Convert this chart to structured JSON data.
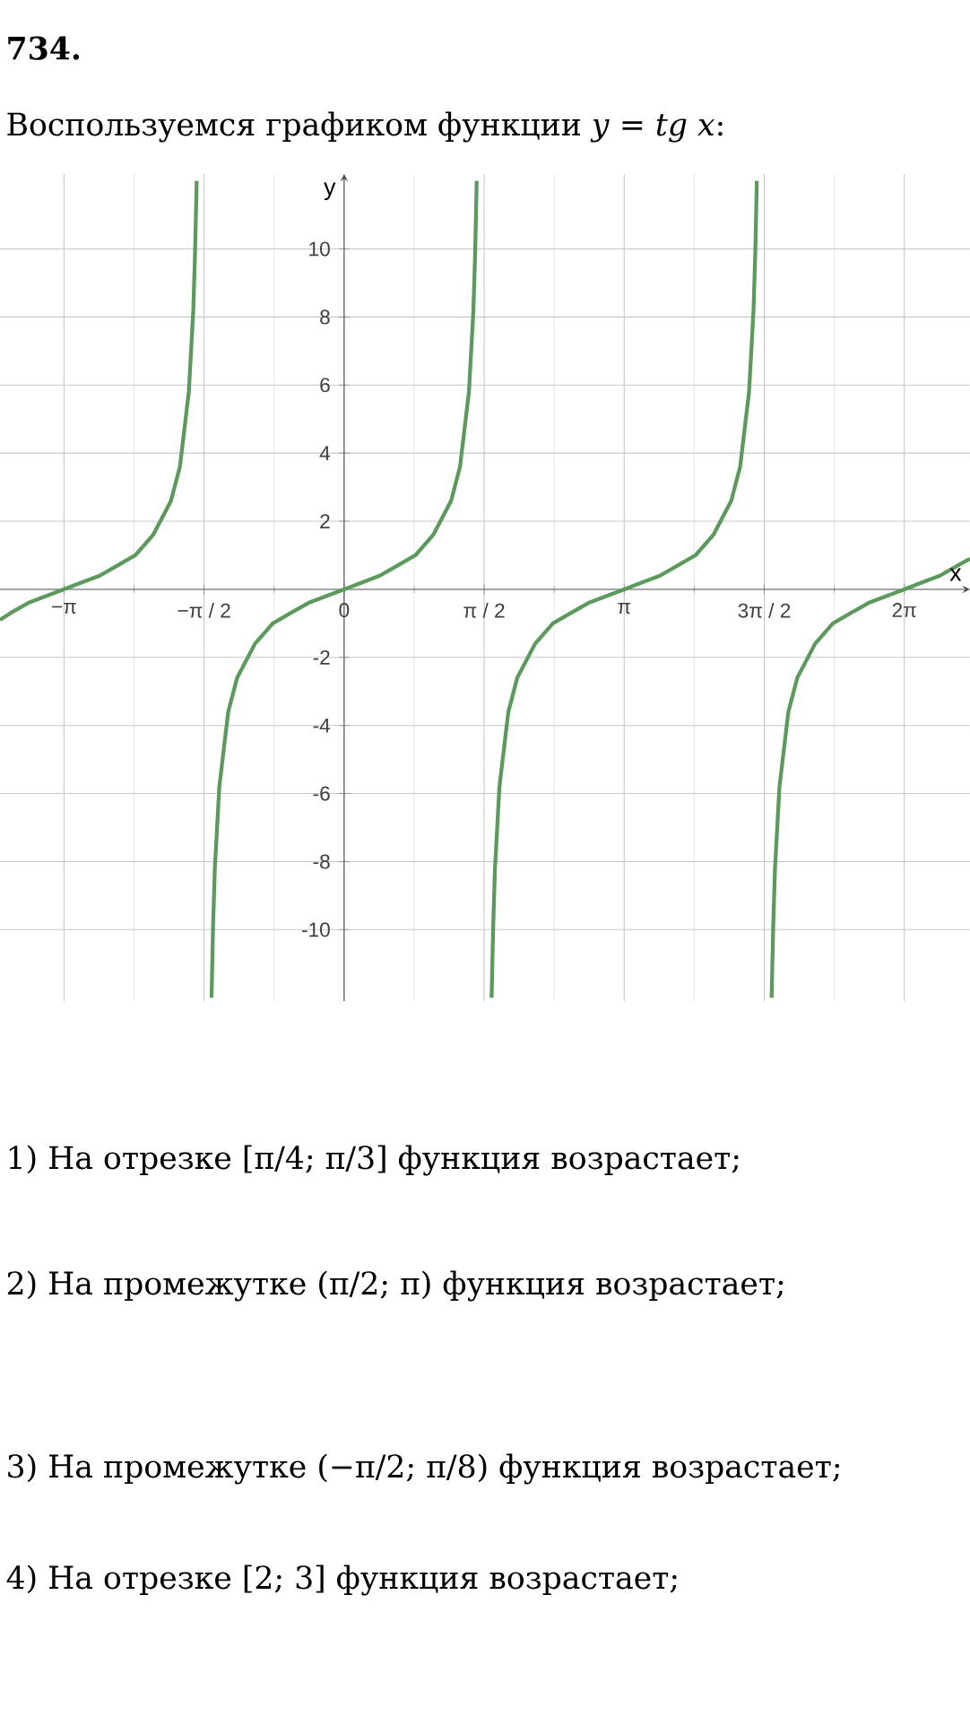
{
  "chart_data": {
    "type": "line",
    "title": "Воспользуемся графиком функции *y* = *tg x*:",
    "annotations": [
      "734.",
      "1) На отрезке [π/4; π/3] функция возрастает;",
      "2) На промежутке (π/2; π) функция возрастает;",
      "3) На промежутке (−π/2; π/8) функция возрастает;",
      "4) На отрезке [2; 3] функция возрастает;"
    ],
    "xlabel": "x",
    "ylabel": "y",
    "series": [
      {
        "color": "#5a9a5a",
        "x": [
          -3.86,
          -3.742,
          -3.542,
          -3.342,
          -3.142,
          -2.942,
          -2.742,
          -2.542,
          -2.342,
          -2.142,
          -1.942,
          -1.842,
          -1.742,
          -1.692,
          -1.672,
          -1.654
        ],
        "values": [
          -0.9,
          -0.7,
          -0.4,
          -0.2,
          0,
          0.2,
          0.4,
          0.7,
          1.0,
          1.6,
          2.6,
          3.6,
          5.8,
          8.2,
          9.9,
          12
        ]
      },
      {
        "color": "#5a9a5a",
        "x": [
          -1.487,
          -1.47,
          -1.45,
          -1.4,
          -1.3,
          -1.2,
          -1.0,
          -0.8,
          -0.6,
          -0.4,
          -0.2,
          0,
          0.2,
          0.4,
          0.6,
          0.8,
          1.0,
          1.2,
          1.3,
          1.4,
          1.45,
          1.47,
          1.487
        ],
        "values": [
          -12,
          -9.9,
          -8.2,
          -5.8,
          -3.6,
          -2.6,
          -1.6,
          -1.0,
          -0.7,
          -0.4,
          -0.2,
          0,
          0.2,
          0.4,
          0.7,
          1.0,
          1.6,
          2.6,
          3.6,
          5.8,
          8.2,
          9.9,
          12
        ]
      },
      {
        "color": "#5a9a5a",
        "x": [
          1.654,
          1.672,
          1.692,
          1.742,
          1.842,
          1.942,
          2.142,
          2.342,
          2.542,
          2.742,
          2.942,
          3.142,
          3.342,
          3.542,
          3.742,
          3.942,
          4.142,
          4.342,
          4.442,
          4.542,
          4.592,
          4.612,
          4.629
        ],
        "values": [
          -12,
          -9.9,
          -8.2,
          -5.8,
          -3.6,
          -2.6,
          -1.6,
          -1.0,
          -0.7,
          -0.4,
          -0.2,
          0,
          0.2,
          0.4,
          0.7,
          1.0,
          1.6,
          2.6,
          3.6,
          5.8,
          8.2,
          9.9,
          12
        ]
      },
      {
        "color": "#5a9a5a",
        "x": [
          4.795,
          4.813,
          4.833,
          4.883,
          4.983,
          5.083,
          5.283,
          5.483,
          5.683,
          5.883,
          6.083,
          6.283,
          6.483,
          6.683,
          6.883,
          7.02
        ],
        "values": [
          -12,
          -9.9,
          -8.2,
          -5.8,
          -3.6,
          -2.6,
          -1.6,
          -1.0,
          -0.7,
          -0.4,
          -0.2,
          0,
          0.2,
          0.4,
          0.7,
          0.9
        ]
      }
    ],
    "xlim": [
      -3.86,
      7.02
    ],
    "ylim": [
      -12.1,
      12.2
    ],
    "xticks": [
      {
        "value": -3.1416,
        "label": "−π"
      },
      {
        "value": -1.5708,
        "label": "−π / 2"
      },
      {
        "value": 0,
        "label": "0"
      },
      {
        "value": 1.5708,
        "label": "π / 2"
      },
      {
        "value": 3.1416,
        "label": "π"
      },
      {
        "value": 4.7124,
        "label": "3π / 2"
      },
      {
        "value": 6.2832,
        "label": "2π"
      }
    ],
    "yticks": [
      -10,
      -8,
      -6,
      -4,
      -2,
      2,
      4,
      6,
      8,
      10
    ],
    "grid": true
  }
}
